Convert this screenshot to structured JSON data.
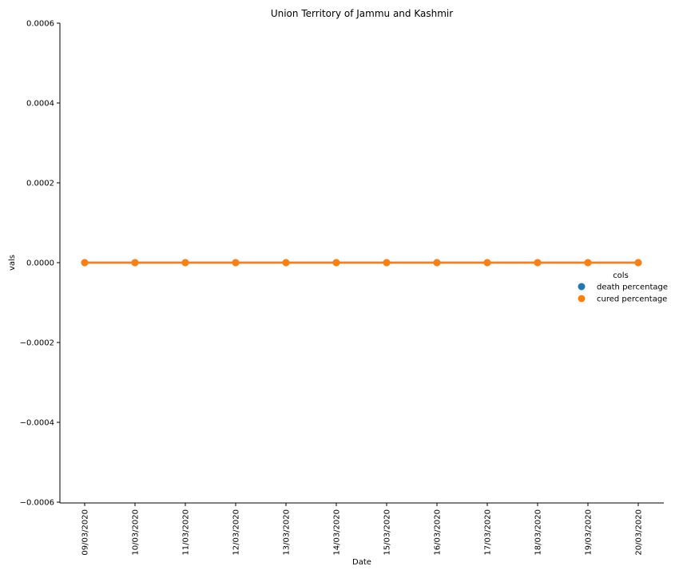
{
  "chart_data": {
    "type": "line",
    "title": "Union Territory of Jammu and Kashmir",
    "xlabel": "Date",
    "ylabel": "vals",
    "categories": [
      "09/03/2020",
      "10/03/2020",
      "11/03/2020",
      "12/03/2020",
      "13/03/2020",
      "14/03/2020",
      "15/03/2020",
      "16/03/2020",
      "17/03/2020",
      "18/03/2020",
      "19/03/2020",
      "20/03/2020"
    ],
    "series": [
      {
        "name": "death percentage",
        "color": "#1f77b4",
        "values": [
          0,
          0,
          0,
          0,
          0,
          0,
          0,
          0,
          0,
          0,
          0,
          0
        ]
      },
      {
        "name": "cured percentage",
        "color": "#ff7f0e",
        "values": [
          0,
          0,
          0,
          0,
          0,
          0,
          0,
          0,
          0,
          0,
          0,
          0
        ]
      }
    ],
    "ylim": [
      -0.0006,
      0.0006
    ],
    "yticks": [
      -0.0006,
      -0.0004,
      -0.0002,
      0.0,
      0.0002,
      0.0004,
      0.0006
    ],
    "ytick_labels": [
      "−0.0006",
      "−0.0004",
      "−0.0002",
      "0.0000",
      "0.0002",
      "0.0004",
      "0.0006"
    ],
    "grid": false,
    "legend": {
      "title": "cols",
      "placement": "right"
    }
  }
}
